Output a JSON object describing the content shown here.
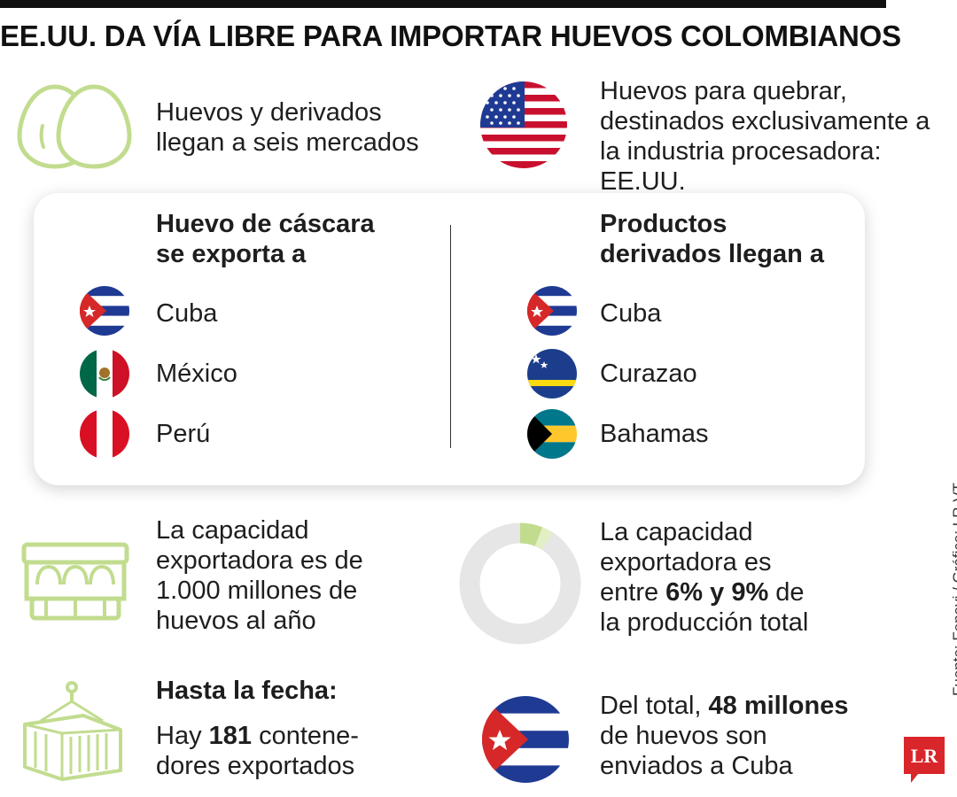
{
  "title": "EE.UU. DA VÍA LIBRE PARA IMPORTAR HUEVOS COLOMBIANOS",
  "top_left": {
    "icon": "eggs-icon",
    "line1": "Huevos y derivados",
    "line2": "llegan a seis mercados"
  },
  "top_right": {
    "icon": "usa-flag-icon",
    "line1": "Huevos para quebrar,",
    "line2": "destinados exclusivamente a",
    "line3": "la industria procesadora: EE.UU."
  },
  "card": {
    "left": {
      "heading1": "Huevo de cáscara",
      "heading2": "se exporta a",
      "countries": [
        "Cuba",
        "México",
        "Perú"
      ]
    },
    "right": {
      "heading1": "Productos",
      "heading2": "derivados llegan a",
      "countries": [
        "Cuba",
        "Curazao",
        "Bahamas"
      ]
    }
  },
  "capacity": {
    "icon": "egg-carton-icon",
    "lines": [
      "La capacidad",
      "exportadora es de",
      "1.000 millones de",
      "huevos al año"
    ]
  },
  "share": {
    "icon": "donut-chart-icon",
    "line1": "La capacidad",
    "line2": "exportadora es",
    "line3_pre": "entre ",
    "line3_bold": "6% y 9%",
    "line3_post": " de",
    "line4": "la producción total",
    "range_min_pct": 6,
    "range_max_pct": 9
  },
  "containers": {
    "icon": "container-icon",
    "heading": "Hasta la fecha:",
    "pre": "Hay ",
    "bold": "181",
    "post": " contene-",
    "line2": "dores exportados"
  },
  "cuba_total": {
    "icon": "cuba-flag-icon",
    "pre": "Del total, ",
    "bold": "48 millones",
    "line2": "de huevos son",
    "line3": "enviados a Cuba"
  },
  "credit": "Fuente: Fenavi  / Gráfico: LR-VT",
  "logo": "LR",
  "colors": {
    "accent_green": "#c2dc8f",
    "donut_gray": "#e6e6e6",
    "logo_red": "#d9262a"
  }
}
